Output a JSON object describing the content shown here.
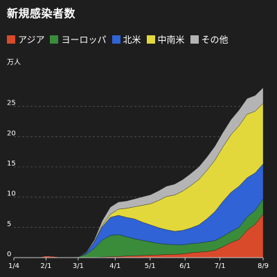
{
  "chart_data": {
    "type": "area",
    "title": "新規感染者数",
    "ylabel_unit": "万人",
    "stacked": true,
    "categories": [
      "1/4",
      "1/11",
      "1/18",
      "1/25",
      "2/1",
      "2/8",
      "2/15",
      "2/22",
      "3/1",
      "3/8",
      "3/15",
      "3/22",
      "3/29",
      "4/5",
      "4/12",
      "4/19",
      "4/26",
      "5/3",
      "5/10",
      "5/17",
      "5/24",
      "5/31",
      "6/7",
      "6/14",
      "6/21",
      "6/28",
      "7/5",
      "7/12",
      "7/19",
      "7/26",
      "8/2",
      "8/9"
    ],
    "x_tick_labels": [
      "1/4",
      "2/1",
      "3/1",
      "4/1",
      "5/1",
      "6/1",
      "7/1",
      "8/9"
    ],
    "y_tick_labels": [
      "0",
      "5",
      "10",
      "15",
      "20",
      "25"
    ],
    "ylim": [
      0,
      30
    ],
    "grid": true,
    "legend_position": "top",
    "series": [
      {
        "name": "アジア",
        "color": "#d94a2b",
        "values": [
          0,
          0,
          0,
          0,
          0.3,
          0.2,
          0.05,
          0.05,
          0.02,
          0.05,
          0.05,
          0.1,
          0.15,
          0.2,
          0.25,
          0.3,
          0.35,
          0.4,
          0.45,
          0.5,
          0.55,
          0.6,
          0.8,
          0.9,
          1.0,
          1.2,
          1.8,
          2.5,
          3.0,
          4.5,
          5.5,
          7.2
        ]
      },
      {
        "name": "ヨーロッパ",
        "color": "#3a8c3a",
        "values": [
          0,
          0,
          0,
          0,
          0,
          0,
          0,
          0.01,
          0.1,
          0.5,
          1.5,
          2.8,
          3.5,
          3.6,
          3.2,
          2.8,
          2.5,
          2.2,
          1.9,
          1.7,
          1.6,
          1.5,
          1.5,
          1.5,
          1.6,
          1.6,
          1.7,
          1.8,
          2.0,
          2.2,
          2.3,
          2.5
        ]
      },
      {
        "name": "北米",
        "color": "#2f63d6",
        "values": [
          0,
          0,
          0,
          0,
          0,
          0,
          0,
          0,
          0.02,
          0.2,
          1.0,
          2.2,
          3.0,
          3.2,
          3.2,
          3.3,
          3.0,
          2.8,
          2.6,
          2.4,
          2.2,
          2.4,
          2.6,
          3.0,
          3.8,
          4.8,
          5.8,
          6.5,
          6.8,
          6.5,
          6.2,
          5.8
        ]
      },
      {
        "name": "中南米",
        "color": "#e2d83c",
        "values": [
          0,
          0,
          0,
          0,
          0,
          0,
          0,
          0,
          0,
          0.02,
          0.05,
          0.2,
          0.5,
          1.0,
          1.5,
          2.0,
          2.8,
          3.5,
          4.5,
          5.5,
          6.0,
          6.5,
          7.0,
          7.5,
          8.0,
          8.5,
          9.0,
          9.5,
          10.0,
          10.5,
          10.2,
          10.0
        ]
      },
      {
        "name": "その他",
        "color": "#b4b4b4",
        "values": [
          0,
          0,
          0,
          0,
          0,
          0,
          0,
          0.01,
          0.02,
          0.1,
          0.3,
          0.8,
          1.2,
          1.2,
          1.2,
          1.3,
          1.4,
          1.5,
          1.6,
          1.7,
          1.8,
          1.9,
          2.0,
          2.1,
          2.2,
          2.3,
          2.4,
          2.5,
          2.6,
          2.6,
          2.6,
          2.6
        ]
      }
    ]
  }
}
